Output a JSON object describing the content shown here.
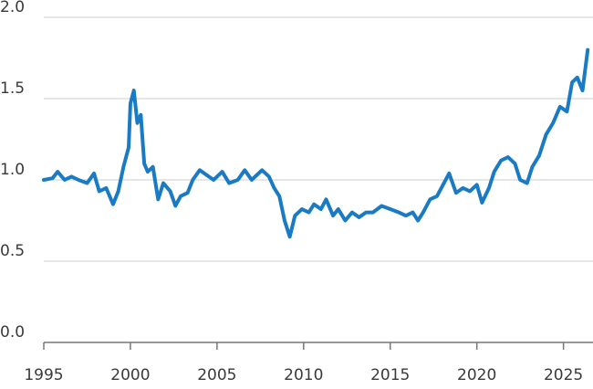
{
  "chart_data": {
    "type": "line",
    "color": "#1a7bc4",
    "x": [
      1995.0,
      1995.5,
      1995.8,
      1996.2,
      1996.6,
      1997.0,
      1997.5,
      1997.9,
      1998.2,
      1998.6,
      1999.0,
      1999.3,
      1999.6,
      1999.9,
      2000.0,
      2000.2,
      2000.4,
      2000.6,
      2000.8,
      2001.0,
      2001.3,
      2001.6,
      2001.9,
      2002.3,
      2002.6,
      2002.9,
      2003.3,
      2003.6,
      2004.0,
      2004.4,
      2004.8,
      2005.3,
      2005.7,
      2006.2,
      2006.6,
      2007.0,
      2007.6,
      2008.0,
      2008.3,
      2008.6,
      2008.9,
      2009.2,
      2009.5,
      2009.9,
      2010.3,
      2010.6,
      2011.0,
      2011.3,
      2011.7,
      2012.0,
      2012.4,
      2012.8,
      2013.2,
      2013.6,
      2014.0,
      2014.5,
      2015.0,
      2015.5,
      2015.9,
      2016.3,
      2016.6,
      2016.9,
      2017.3,
      2017.7,
      2018.1,
      2018.4,
      2018.8,
      2019.2,
      2019.6,
      2020.0,
      2020.3,
      2020.7,
      2021.0,
      2021.4,
      2021.8,
      2022.2,
      2022.5,
      2022.9,
      2023.2,
      2023.6,
      2024.0,
      2024.4,
      2024.8,
      2025.2,
      2025.5,
      2025.8,
      2026.1,
      2026.4
    ],
    "values": [
      1.0,
      1.01,
      1.05,
      1.0,
      1.02,
      1.0,
      0.98,
      1.04,
      0.93,
      0.95,
      0.85,
      0.93,
      1.08,
      1.2,
      1.47,
      1.55,
      1.35,
      1.4,
      1.1,
      1.05,
      1.08,
      0.88,
      0.98,
      0.93,
      0.84,
      0.9,
      0.92,
      1.0,
      1.06,
      1.03,
      1.0,
      1.05,
      0.98,
      1.0,
      1.06,
      1.0,
      1.06,
      1.02,
      0.95,
      0.9,
      0.75,
      0.65,
      0.78,
      0.82,
      0.8,
      0.85,
      0.82,
      0.88,
      0.78,
      0.82,
      0.75,
      0.8,
      0.77,
      0.8,
      0.8,
      0.84,
      0.82,
      0.8,
      0.78,
      0.8,
      0.75,
      0.8,
      0.88,
      0.9,
      0.98,
      1.04,
      0.92,
      0.95,
      0.93,
      0.97,
      0.86,
      0.95,
      1.05,
      1.12,
      1.14,
      1.1,
      1.0,
      0.98,
      1.08,
      1.15,
      1.28,
      1.35,
      1.45,
      1.42,
      1.6,
      1.63,
      1.55,
      1.8
    ],
    "xlim": [
      1995,
      2026.6
    ],
    "xticks": [
      1995,
      2000,
      2005,
      2010,
      2015,
      2020,
      2025
    ],
    "ylim": [
      0,
      2
    ],
    "yticks": [
      {
        "value": 0,
        "label": "0.0"
      },
      0.5,
      {
        "value": 1,
        "label": "1.0"
      },
      1.5,
      {
        "value": 2,
        "label": "2.0"
      }
    ],
    "grid": true
  }
}
